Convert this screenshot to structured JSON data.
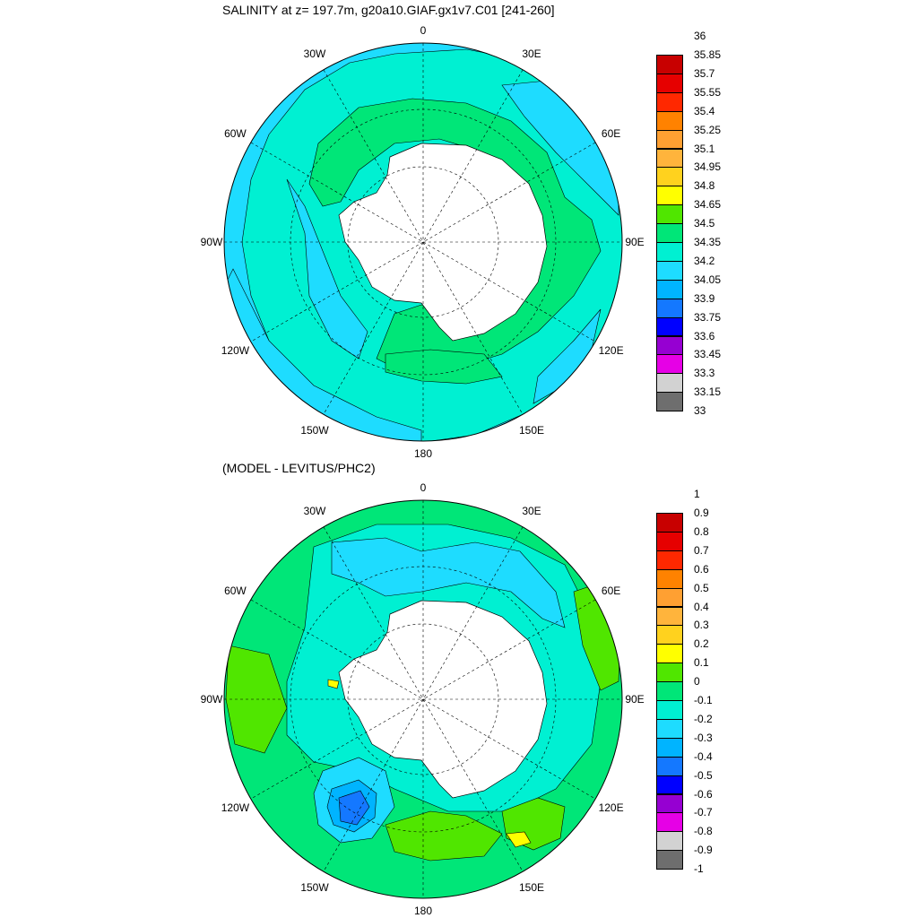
{
  "panels": [
    {
      "title": "SALINITY at z= 197.7m, g20a10.GIAF.gx1v7.C01 [241-260]",
      "lon_labels": [
        "0",
        "30E",
        "60E",
        "90E",
        "120E",
        "150E",
        "180",
        "150W",
        "120W",
        "90W",
        "60W",
        "30W"
      ],
      "colorbar": {
        "colors": [
          "#6e6e6e",
          "#d2d2d2",
          "#e600e6",
          "#9600d2",
          "#0000ff",
          "#1478ff",
          "#00b4ff",
          "#1edcff",
          "#00f0d2",
          "#00e678",
          "#50e600",
          "#ffff00",
          "#ffd21e",
          "#ffb43c",
          "#ffa032",
          "#ff8200",
          "#ff2800",
          "#e60000",
          "#c80000"
        ],
        "ticks": [
          "33",
          "33.15",
          "33.3",
          "33.45",
          "33.6",
          "33.75",
          "33.9",
          "34.05",
          "34.2",
          "34.35",
          "34.5",
          "34.65",
          "34.8",
          "34.95",
          "35.1",
          "35.25",
          "35.4",
          "35.55",
          "35.7",
          "35.85",
          "36"
        ]
      }
    },
    {
      "title": "(MODEL - LEVITUS/PHC2)",
      "lon_labels": [
        "0",
        "30E",
        "60E",
        "90E",
        "120E",
        "150E",
        "180",
        "150W",
        "120W",
        "90W",
        "60W",
        "30W"
      ],
      "colorbar": {
        "colors": [
          "#6e6e6e",
          "#d2d2d2",
          "#e600e6",
          "#9600d2",
          "#0000ff",
          "#1478ff",
          "#00b4ff",
          "#1edcff",
          "#00f0d2",
          "#00e678",
          "#50e600",
          "#ffff00",
          "#ffd21e",
          "#ffb43c",
          "#ffa032",
          "#ff8200",
          "#ff2800",
          "#e60000",
          "#c80000"
        ],
        "ticks": [
          "-1",
          "-0.9",
          "-0.8",
          "-0.7",
          "-0.6",
          "-0.5",
          "-0.4",
          "-0.3",
          "-0.2",
          "-0.1",
          "0",
          "0.1",
          "0.2",
          "0.3",
          "0.4",
          "0.5",
          "0.6",
          "0.7",
          "0.8",
          "0.9",
          "1"
        ]
      }
    }
  ]
}
